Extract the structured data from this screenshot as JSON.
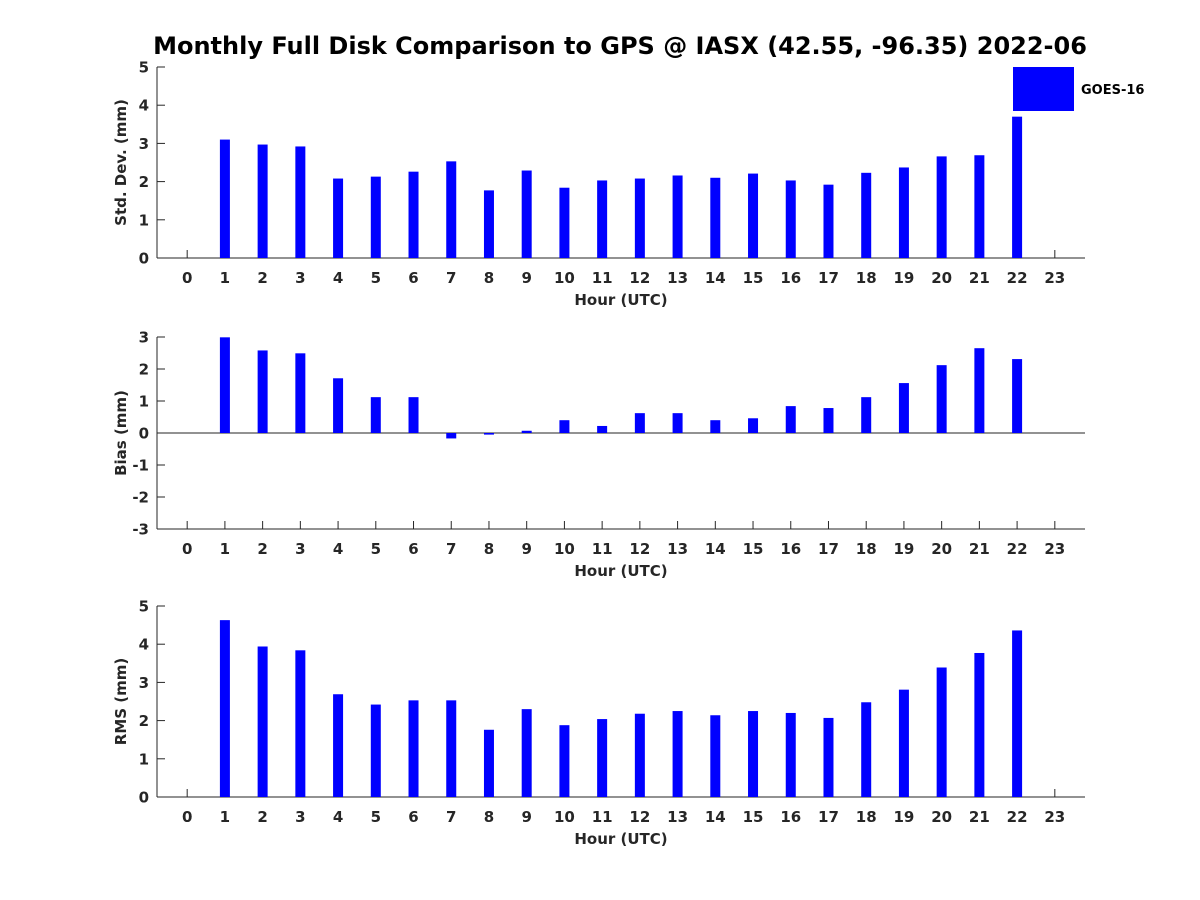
{
  "title": "Monthly Full Disk Comparison to GPS @ IASX (42.55, -96.35) 2022-06",
  "legend": {
    "label": "GOES-16",
    "color": "#0000ff",
    "placement": "top-right"
  },
  "chart_data": [
    {
      "type": "bar",
      "id": "stddev",
      "xlabel": "Hour (UTC)",
      "ylabel": "Std. Dev. (mm)",
      "xlim": [
        -0.8,
        23.8
      ],
      "ylim": [
        0,
        5
      ],
      "yticks": [
        0,
        1,
        2,
        3,
        4,
        5
      ],
      "xticks": [
        0,
        1,
        2,
        3,
        4,
        5,
        6,
        7,
        8,
        9,
        10,
        11,
        12,
        13,
        14,
        15,
        16,
        17,
        18,
        19,
        20,
        21,
        22,
        23
      ],
      "x": [
        1,
        2,
        3,
        4,
        5,
        6,
        7,
        8,
        9,
        10,
        11,
        12,
        13,
        14,
        15,
        16,
        17,
        18,
        19,
        20,
        21,
        22
      ],
      "series": [
        {
          "name": "GOES-16",
          "color": "#0000ff",
          "values": [
            3.1,
            2.97,
            2.92,
            2.08,
            2.13,
            2.26,
            2.53,
            1.77,
            2.29,
            1.84,
            2.03,
            2.08,
            2.16,
            2.1,
            2.21,
            2.03,
            1.92,
            2.23,
            2.37,
            2.66,
            2.69,
            3.7
          ]
        }
      ]
    },
    {
      "type": "bar",
      "id": "bias",
      "xlabel": "Hour (UTC)",
      "ylabel": "Bias (mm)",
      "xlim": [
        -0.8,
        23.8
      ],
      "ylim": [
        -3,
        3
      ],
      "yticks": [
        -3,
        -2,
        -1,
        0,
        1,
        2,
        3
      ],
      "xticks": [
        0,
        1,
        2,
        3,
        4,
        5,
        6,
        7,
        8,
        9,
        10,
        11,
        12,
        13,
        14,
        15,
        16,
        17,
        18,
        19,
        20,
        21,
        22,
        23
      ],
      "x": [
        1,
        2,
        3,
        4,
        5,
        6,
        7,
        8,
        9,
        10,
        11,
        12,
        13,
        14,
        15,
        16,
        17,
        18,
        19,
        20,
        21,
        22
      ],
      "series": [
        {
          "name": "GOES-16",
          "color": "#0000ff",
          "values": [
            2.99,
            2.58,
            2.49,
            1.71,
            1.12,
            1.12,
            -0.17,
            -0.05,
            0.07,
            0.4,
            0.22,
            0.62,
            0.62,
            0.4,
            0.46,
            0.84,
            0.78,
            1.12,
            1.56,
            2.12,
            2.65,
            2.31
          ]
        }
      ]
    },
    {
      "type": "bar",
      "id": "rms",
      "xlabel": "Hour (UTC)",
      "ylabel": "RMS (mm)",
      "xlim": [
        -0.8,
        23.8
      ],
      "ylim": [
        0,
        5
      ],
      "yticks": [
        0,
        1,
        2,
        3,
        4,
        5
      ],
      "xticks": [
        0,
        1,
        2,
        3,
        4,
        5,
        6,
        7,
        8,
        9,
        10,
        11,
        12,
        13,
        14,
        15,
        16,
        17,
        18,
        19,
        20,
        21,
        22,
        23
      ],
      "x": [
        1,
        2,
        3,
        4,
        5,
        6,
        7,
        8,
        9,
        10,
        11,
        12,
        13,
        14,
        15,
        16,
        17,
        18,
        19,
        20,
        21,
        22
      ],
      "series": [
        {
          "name": "GOES-16",
          "color": "#0000ff",
          "values": [
            4.63,
            3.94,
            3.84,
            2.69,
            2.42,
            2.53,
            2.53,
            1.76,
            2.3,
            1.88,
            2.04,
            2.18,
            2.25,
            2.14,
            2.25,
            2.2,
            2.07,
            2.48,
            2.81,
            3.39,
            3.77,
            4.36
          ]
        }
      ]
    }
  ]
}
